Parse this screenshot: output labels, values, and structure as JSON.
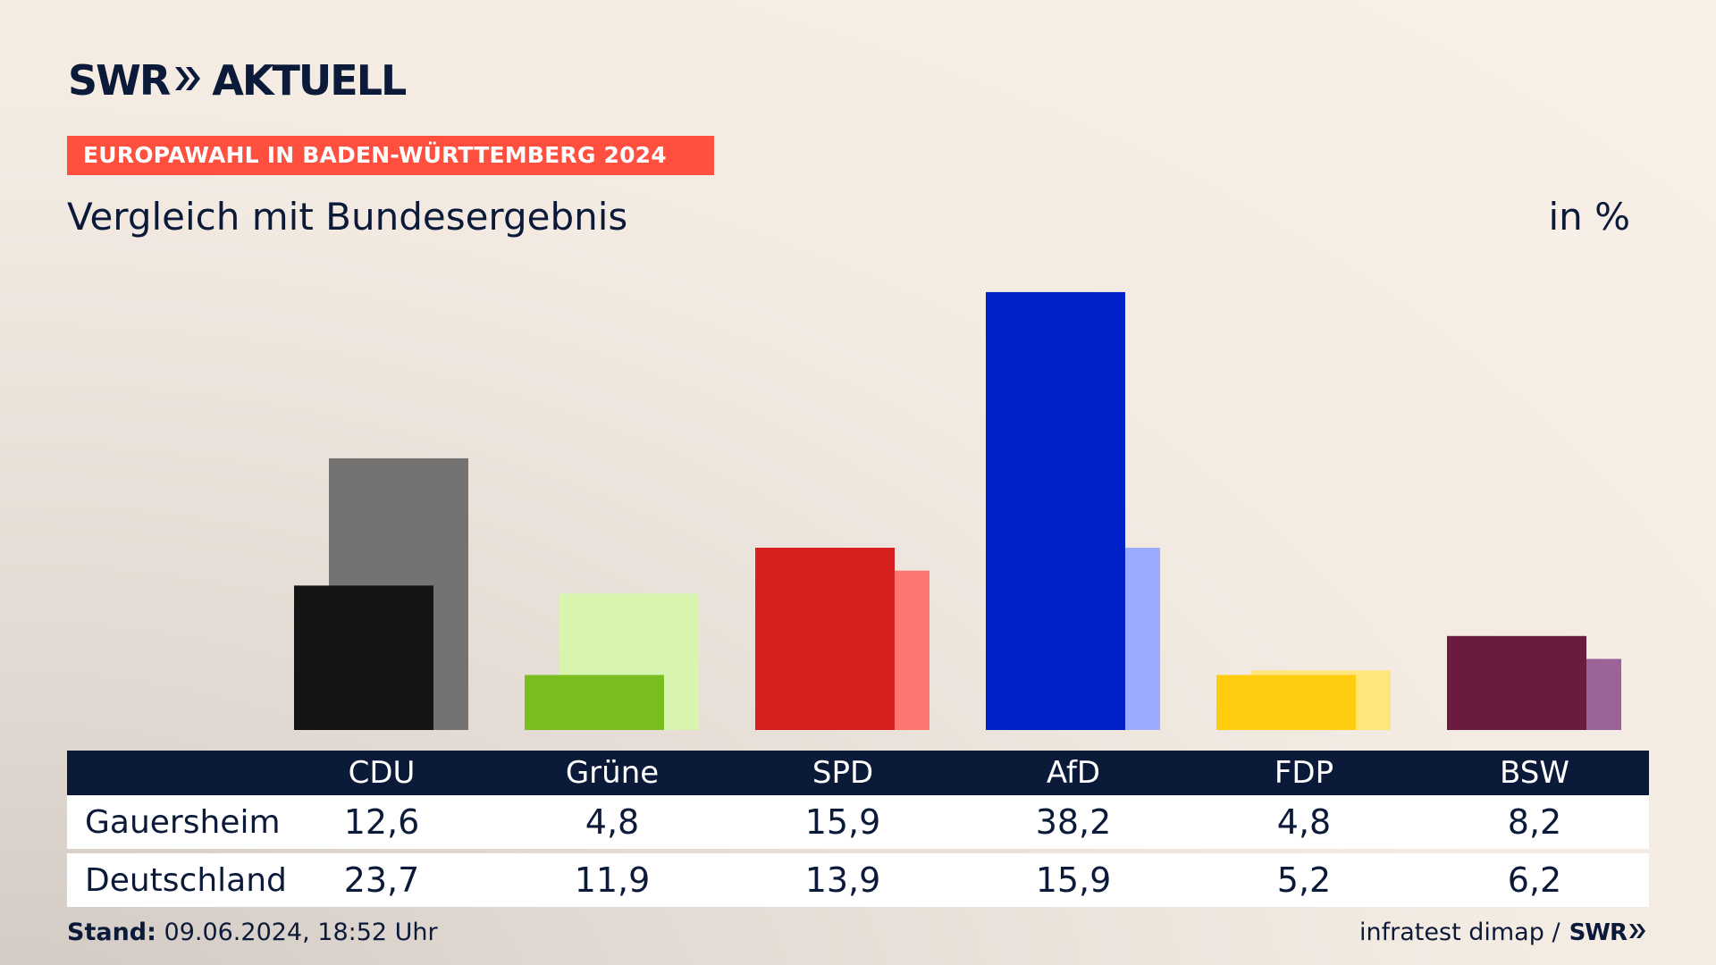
{
  "brand": {
    "name": "SWR",
    "program": "AKTUELL"
  },
  "banner": "EUROPAWAHL IN BADEN-WÜRTTEMBERG 2024",
  "subtitle": "Vergleich mit Bundesergebnis",
  "unit": "in %",
  "chart_data": {
    "type": "bar",
    "categories": [
      "CDU",
      "Grüne",
      "SPD",
      "AfD",
      "FDP",
      "BSW"
    ],
    "series": [
      {
        "name": "Gauersheim",
        "values": [
          12.6,
          4.8,
          15.9,
          38.2,
          4.8,
          8.2
        ]
      },
      {
        "name": "Deutschland",
        "values": [
          23.7,
          11.9,
          13.9,
          15.9,
          5.2,
          6.2
        ]
      }
    ],
    "colors": {
      "front": [
        "#141414",
        "#78be1e",
        "#d71f1f",
        "#0021c7",
        "#ffcd0f",
        "#6b1a40"
      ],
      "back": [
        "#757371",
        "#d7f5ae",
        "#ff7570",
        "#9dabff",
        "#ffe57a",
        "#9c6399"
      ]
    }
  },
  "table": {
    "rows": [
      {
        "label": "Gauersheim",
        "values": [
          "12,6",
          "4,8",
          "15,9",
          "38,2",
          "4,8",
          "8,2"
        ]
      },
      {
        "label": "Deutschland",
        "values": [
          "23,7",
          "11,9",
          "13,9",
          "15,9",
          "5,2",
          "6,2"
        ]
      }
    ]
  },
  "footer": {
    "stand_label": "Stand:",
    "stand_value": "09.06.2024, 18:52 Uhr",
    "source": "infratest dimap /",
    "source_brand": "SWR"
  }
}
